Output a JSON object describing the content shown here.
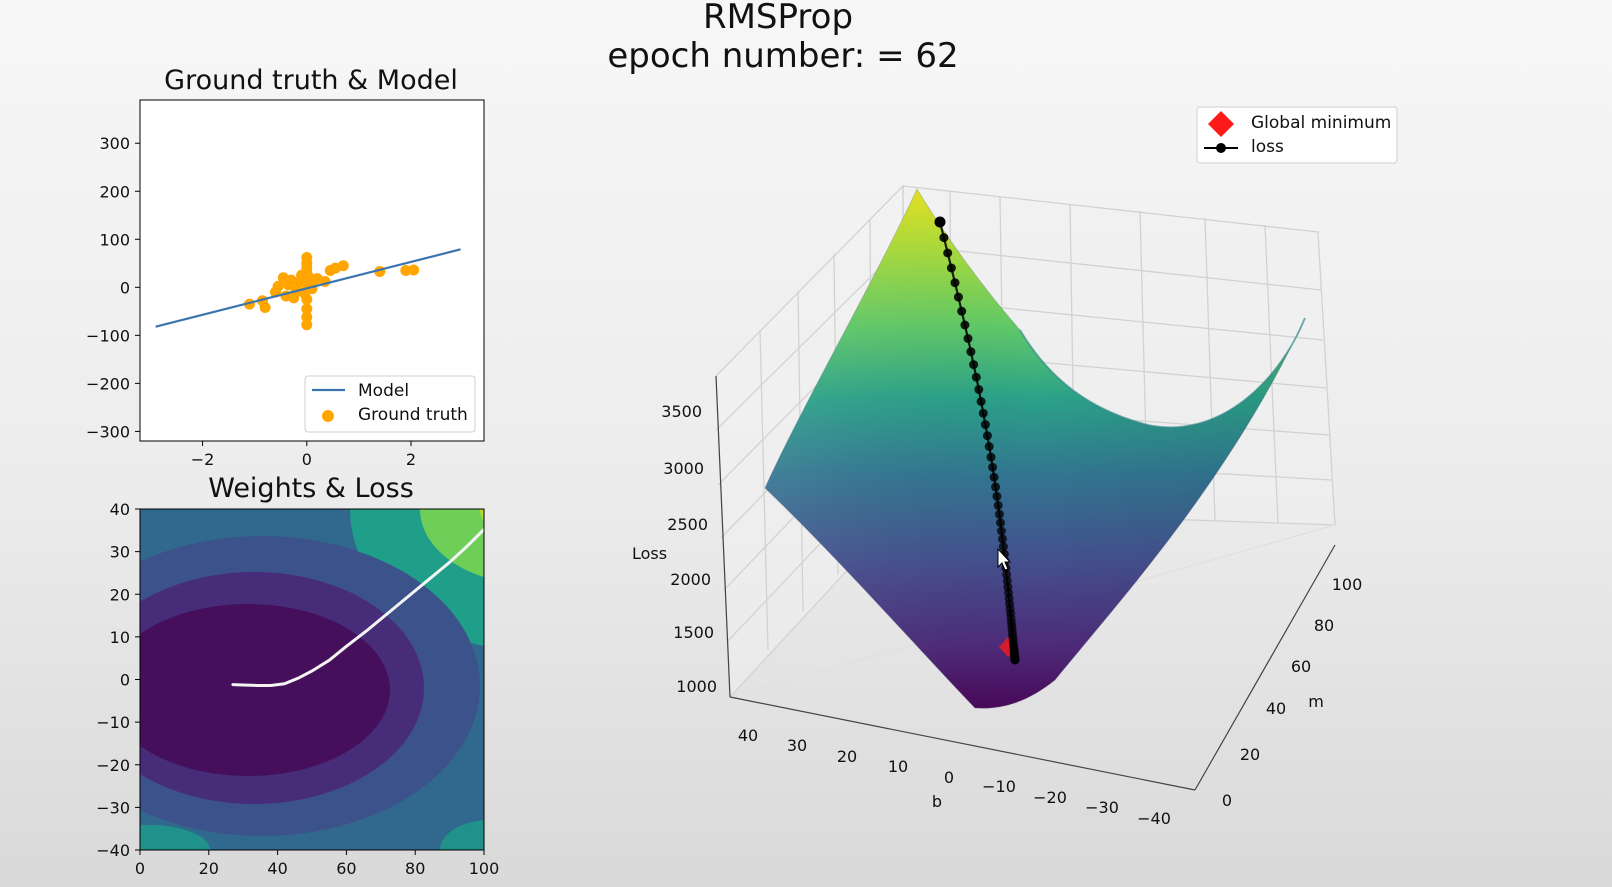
{
  "figure": {
    "title_line1": "RMSProp",
    "title_line2": "epoch number: = 62"
  },
  "colors": {
    "model_line": "#3b75af",
    "ground_truth": "#ffa500",
    "global_min": "#ff1a1a",
    "loss_path": "#000000",
    "contour_path": "#f4f4f4",
    "colormap": "viridis"
  },
  "chart_data": [
    {
      "id": "ground_truth_model",
      "type": "scatter",
      "title": "Ground truth & Model",
      "xlabel": "",
      "ylabel": "",
      "xlim": [
        -3.2,
        3.4
      ],
      "ylim": [
        -320,
        390
      ],
      "xticks": [
        -2,
        0,
        2
      ],
      "xtick_labels": [
        "−2",
        "0",
        "2"
      ],
      "yticks": [
        300,
        200,
        100,
        0,
        -100,
        -200,
        -300
      ],
      "ytick_labels": [
        "300",
        "200",
        "100",
        "0",
        "−100",
        "−200",
        "−300"
      ],
      "legend_position": "lower right",
      "series": [
        {
          "name": "Model",
          "kind": "line",
          "x": [
            -2.9,
            2.95
          ],
          "y": [
            -82,
            79
          ]
        },
        {
          "name": "Ground truth",
          "kind": "scatter",
          "x": [
            -1.1,
            -0.85,
            -0.8,
            -0.6,
            -0.55,
            -0.45,
            -0.4,
            -0.35,
            -0.3,
            -0.25,
            -0.2,
            -0.15,
            -0.1,
            -0.05,
            0.0,
            0.0,
            0.0,
            0.0,
            0.0,
            0.0,
            0.0,
            0.0,
            0.0,
            0.0,
            0.05,
            0.1,
            0.1,
            0.2,
            0.35,
            0.45,
            0.55,
            0.7,
            1.4,
            1.9,
            2.05
          ],
          "y": [
            -35,
            -28,
            -42,
            -10,
            2,
            20,
            -18,
            5,
            15,
            -22,
            -8,
            10,
            25,
            -12,
            62,
            50,
            40,
            30,
            15,
            -5,
            -25,
            -45,
            -62,
            -78,
            20,
            8,
            -3,
            18,
            12,
            35,
            40,
            45,
            33,
            35,
            36
          ]
        }
      ]
    },
    {
      "id": "weights_loss",
      "type": "heatmap",
      "title": "Weights & Loss",
      "xlabel": "",
      "ylabel": "",
      "xlim": [
        0,
        100
      ],
      "ylim": [
        -40,
        40
      ],
      "xticks": [
        0,
        20,
        40,
        60,
        80,
        100
      ],
      "xtick_labels": [
        "0",
        "20",
        "40",
        "60",
        "80",
        "100"
      ],
      "yticks": [
        40,
        30,
        20,
        10,
        0,
        -10,
        -20,
        -30,
        -40
      ],
      "ytick_labels": [
        "40",
        "30",
        "20",
        "10",
        "0",
        "−10",
        "−20",
        "−30",
        "−40"
      ],
      "minimum": {
        "x": 30,
        "y": -2
      },
      "series": [
        {
          "name": "",
          "kind": "line",
          "x": [
            27,
            30,
            34,
            38,
            42,
            46,
            50,
            55,
            60,
            66,
            72,
            78,
            84,
            90,
            95,
            100
          ],
          "y": [
            -1.2,
            -1.3,
            -1.4,
            -1.4,
            -1.0,
            0.3,
            2.0,
            4.5,
            7.8,
            11.5,
            15.5,
            19.5,
            23.5,
            27.5,
            31.2,
            35.2
          ]
        }
      ]
    },
    {
      "id": "loss_surface",
      "type": "surface3d",
      "title": "",
      "zlabel": "Loss",
      "xlabel": "b",
      "ylabel": "m",
      "b_range": [
        -40,
        45
      ],
      "m_range": [
        0,
        100
      ],
      "z_range": [
        1000,
        3800
      ],
      "b_ticks": [
        40,
        30,
        20,
        10,
        0,
        -10,
        -20,
        -30,
        -40
      ],
      "b_tick_labels": [
        "40",
        "30",
        "20",
        "10",
        "0",
        "−10",
        "−20",
        "−30",
        "−40"
      ],
      "m_ticks": [
        0,
        20,
        40,
        60,
        80,
        100
      ],
      "m_tick_labels": [
        "0",
        "20",
        "40",
        "60",
        "80",
        "100"
      ],
      "z_ticks": [
        1000,
        1500,
        2000,
        2500,
        3000,
        3500
      ],
      "z_tick_labels": [
        "1000",
        "1500",
        "2000",
        "2500",
        "3000",
        "3500"
      ],
      "legend_position": "upper right",
      "legend": [
        {
          "label": "Global minimum",
          "marker": "diamond"
        },
        {
          "label": "loss",
          "marker": "line-dot"
        }
      ],
      "grid": true,
      "loss_path_points": 62
    }
  ]
}
